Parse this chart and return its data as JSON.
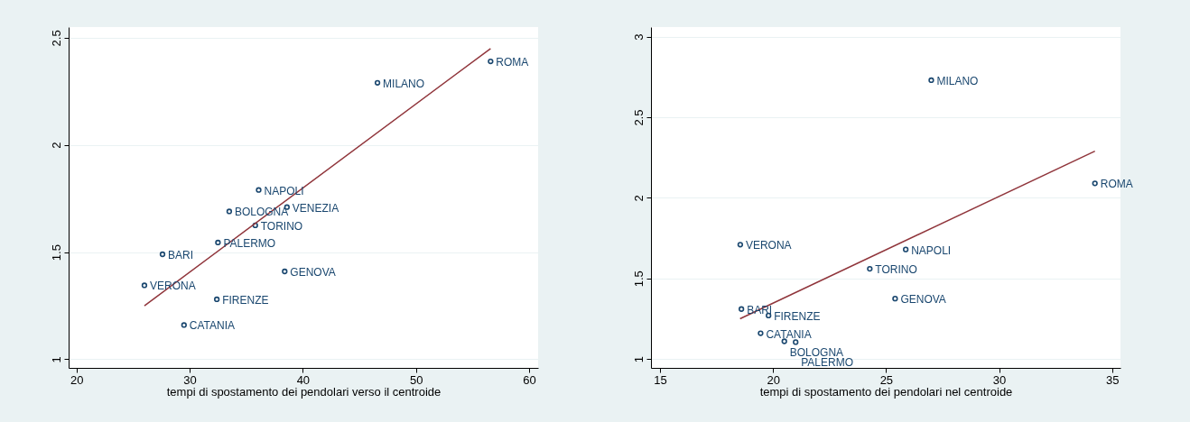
{
  "chart_data": [
    {
      "type": "scatter",
      "xlabel": "tempi di spostamento dei pendolari verso il centroide",
      "xlim": [
        19.3,
        60.8
      ],
      "xticks": [
        20,
        30,
        40,
        50,
        60
      ],
      "ylim": [
        0.96,
        2.55
      ],
      "yticks": [
        1,
        1.5,
        2,
        2.5
      ],
      "grid": "y",
      "series": [
        {
          "type": "scatter",
          "marker": "circle",
          "color": "#1a476f",
          "x": [
            56.6,
            46.6,
            36.1,
            38.6,
            33.5,
            35.8,
            32.5,
            27.6,
            38.4,
            26.0,
            32.4,
            29.5
          ],
          "values": [
            2.39,
            2.29,
            1.79,
            1.71,
            1.69,
            1.625,
            1.545,
            1.49,
            1.41,
            1.345,
            1.28,
            1.16
          ]
        },
        {
          "type": "line",
          "color": "#90353b",
          "line_style": "solid",
          "x": [
            26.0,
            56.6
          ],
          "values": [
            1.25,
            2.45
          ]
        }
      ],
      "annotations": [
        {
          "text": "ROMA",
          "x": 56.6,
          "y": 2.39
        },
        {
          "text": "MILANO",
          "x": 46.6,
          "y": 2.29
        },
        {
          "text": "NAPOLI",
          "x": 36.1,
          "y": 1.79
        },
        {
          "text": "VENEZIA",
          "x": 38.6,
          "y": 1.71
        },
        {
          "text": "BOLOGNA",
          "x": 33.5,
          "y": 1.69
        },
        {
          "text": "TORINO",
          "x": 35.8,
          "y": 1.625
        },
        {
          "text": "PALERMO",
          "x": 32.5,
          "y": 1.545
        },
        {
          "text": "BARI",
          "x": 27.6,
          "y": 1.49
        },
        {
          "text": "GENOVA",
          "x": 38.4,
          "y": 1.41
        },
        {
          "text": "VERONA",
          "x": 26.0,
          "y": 1.345
        },
        {
          "text": "FIRENZE",
          "x": 32.4,
          "y": 1.28
        },
        {
          "text": "CATANIA",
          "x": 29.5,
          "y": 1.16
        }
      ]
    },
    {
      "type": "scatter",
      "xlabel": "tempi di spostamento dei pendolari nel centroide",
      "xlim": [
        14.6,
        35.37
      ],
      "xticks": [
        15,
        20,
        25,
        30,
        35
      ],
      "ylim": [
        0.945,
        3.06
      ],
      "yticks": [
        1,
        1.5,
        2,
        2.5,
        3
      ],
      "grid": "y",
      "series": [
        {
          "type": "scatter",
          "marker": "circle",
          "color": "#1a476f",
          "x": [
            27.0,
            34.24,
            18.55,
            25.87,
            24.28,
            25.4,
            18.6,
            19.8,
            19.45,
            20.5,
            21.0
          ],
          "values": [
            2.73,
            2.09,
            1.71,
            1.68,
            1.56,
            1.375,
            1.31,
            1.27,
            1.16,
            1.11,
            1.105
          ]
        },
        {
          "type": "line",
          "color": "#90353b",
          "line_style": "solid",
          "x": [
            18.54,
            34.24
          ],
          "values": [
            1.25,
            2.29
          ]
        }
      ],
      "annotations": [
        {
          "text": "MILANO",
          "x": 27.0,
          "y": 2.73
        },
        {
          "text": "ROMA",
          "x": 34.24,
          "y": 2.09
        },
        {
          "text": "VERONA",
          "x": 18.55,
          "y": 1.71
        },
        {
          "text": "NAPOLI",
          "x": 25.87,
          "y": 1.68
        },
        {
          "text": "TORINO",
          "x": 24.28,
          "y": 1.56
        },
        {
          "text": "GENOVA",
          "x": 25.4,
          "y": 1.375
        },
        {
          "text": "BARI",
          "x": 18.6,
          "y": 1.31
        },
        {
          "text": "FIRENZE",
          "x": 19.8,
          "y": 1.27
        },
        {
          "text": "CATANIA",
          "x": 19.45,
          "y": 1.16
        },
        {
          "text": "BOLOGNA",
          "x": 20.5,
          "y": 1.11
        },
        {
          "text": "PALERMO",
          "x": 21.0,
          "y": 1.105
        }
      ]
    }
  ]
}
